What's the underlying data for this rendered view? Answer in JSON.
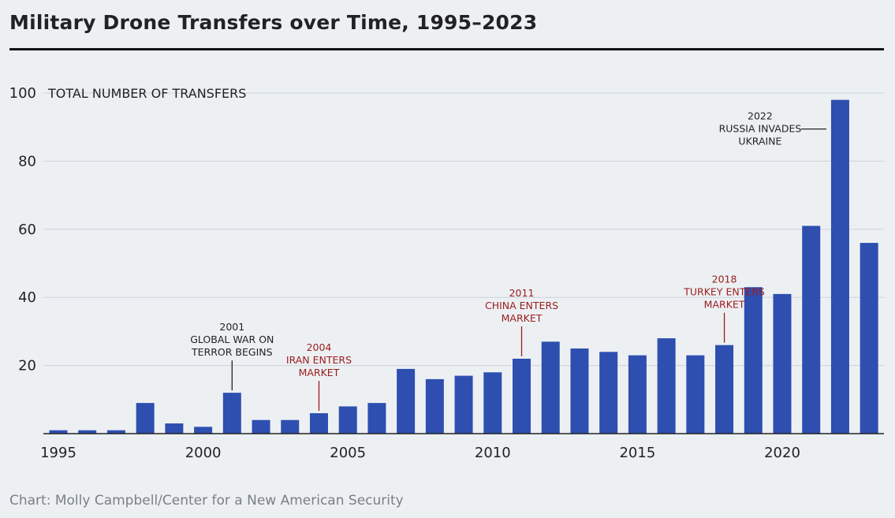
{
  "header": {
    "title": "Military Drone Transfers over Time, 1995–2023"
  },
  "footer": {
    "source": "Chart: Molly Campbell/Center for a New American Security"
  },
  "chart_data": {
    "type": "bar",
    "title": "Military Drone Transfers over Time, 1995–2023",
    "xlabel": "",
    "ylabel": "TOTAL NUMBER OF TRANSFERS",
    "ylim": [
      0,
      100
    ],
    "yticks": [
      20,
      40,
      60,
      80,
      100
    ],
    "xticks": [
      1995,
      2000,
      2005,
      2010,
      2015,
      2020
    ],
    "grid": "horizontal",
    "bar_color": "#2e4fb0",
    "categories": [
      1995,
      1996,
      1997,
      1998,
      1999,
      2000,
      2001,
      2002,
      2003,
      2004,
      2005,
      2006,
      2007,
      2008,
      2009,
      2010,
      2011,
      2012,
      2013,
      2014,
      2015,
      2016,
      2017,
      2018,
      2019,
      2020,
      2021,
      2022,
      2023
    ],
    "values": [
      1,
      1,
      1,
      9,
      3,
      2,
      12,
      4,
      4,
      6,
      8,
      9,
      19,
      16,
      17,
      18,
      22,
      27,
      25,
      24,
      23,
      28,
      23,
      26,
      43,
      41,
      61,
      98,
      56
    ],
    "annotations": [
      {
        "year": 2001,
        "lines": [
          "2001",
          "GLOBAL WAR ON",
          "TERROR BEGINS"
        ],
        "color": "#222222",
        "side": "above"
      },
      {
        "year": 2004,
        "lines": [
          "2004",
          "IRAN ENTERS",
          "MARKET"
        ],
        "color": "#9b1c1c",
        "side": "above"
      },
      {
        "year": 2011,
        "lines": [
          "2011",
          "CHINA ENTERS",
          "MARKET"
        ],
        "color": "#9b1c1c",
        "side": "above"
      },
      {
        "year": 2018,
        "lines": [
          "2018",
          "TURKEY ENTERS",
          "MARKET"
        ],
        "color": "#9b1c1c",
        "side": "above"
      },
      {
        "year": 2022,
        "lines": [
          "2022",
          "RUSSIA INVADES",
          "UKRAINE"
        ],
        "color": "#222222",
        "side": "left"
      }
    ]
  }
}
